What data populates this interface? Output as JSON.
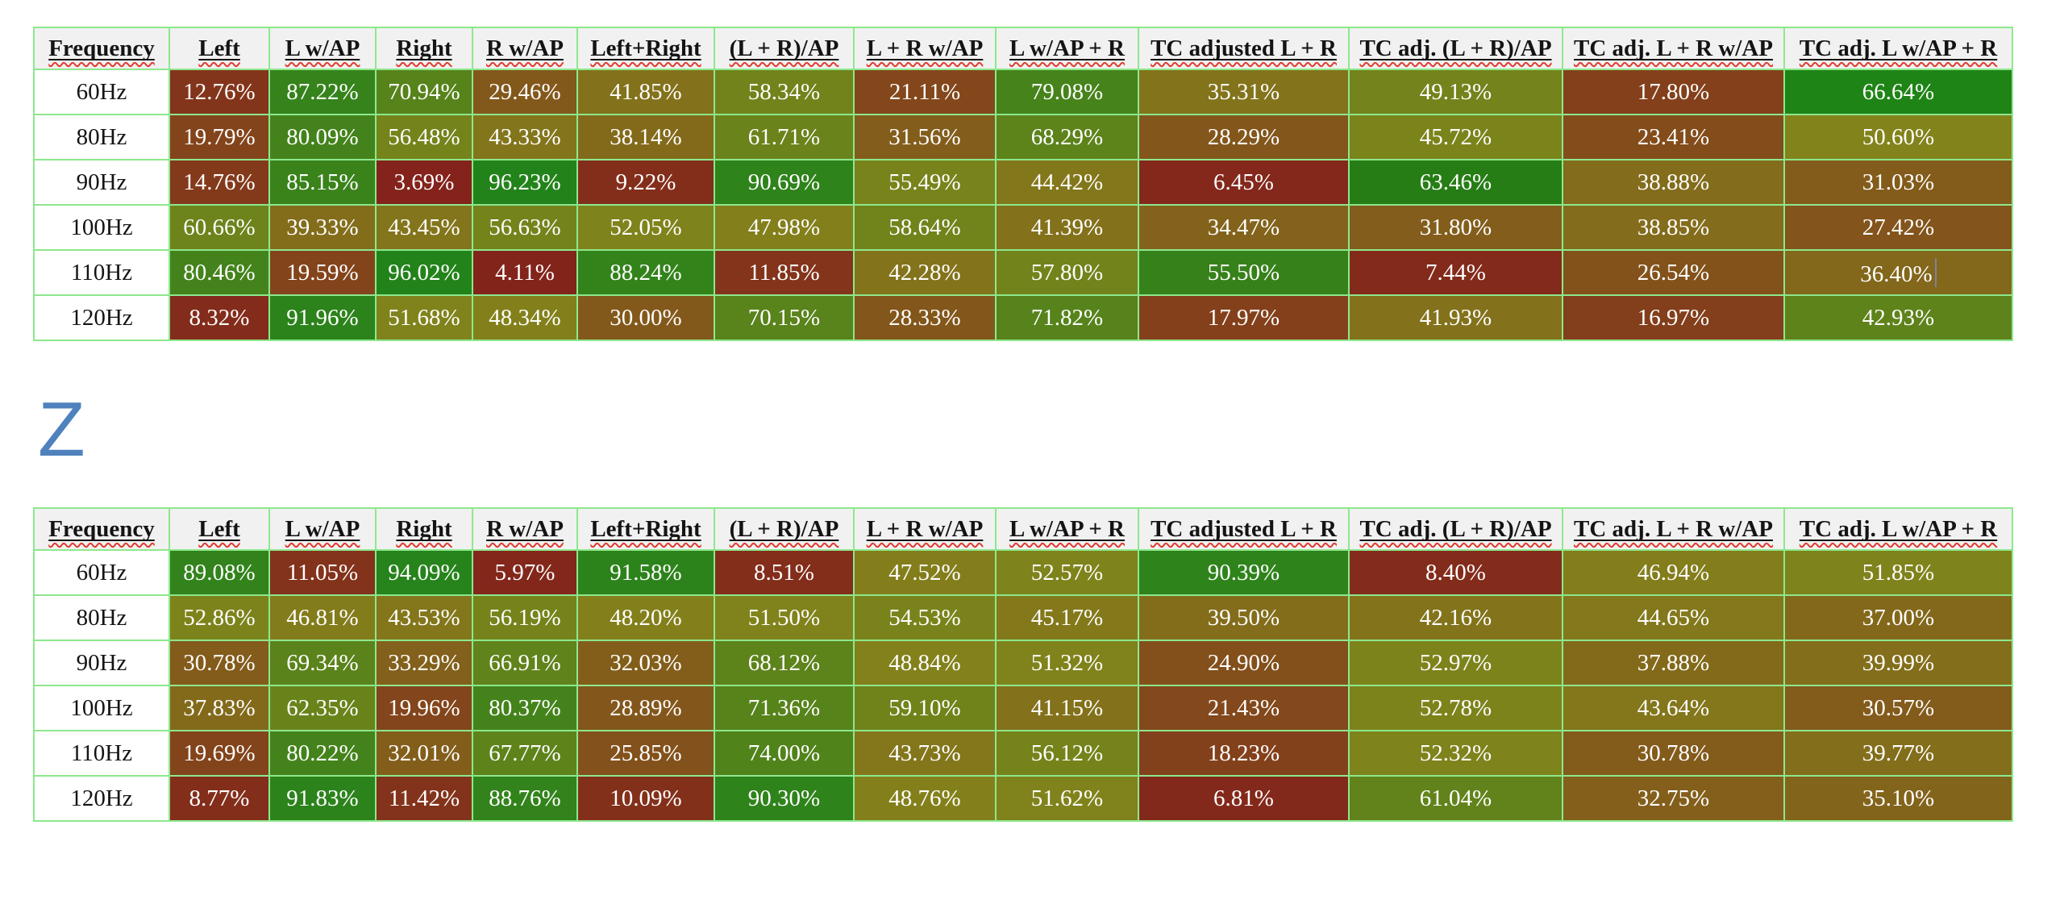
{
  "page": {
    "background": "#ffffff"
  },
  "theme": {
    "table_border": "#8de88d",
    "header_bg": "#f1f1f1",
    "header_text": "#141414",
    "cell_text": "#ffffff",
    "spellcheck_underline": "#e03c31",
    "caret_color": "#80809c",
    "heading_color": "#4f81bd"
  },
  "heading": {
    "text": "Z"
  },
  "headers": [
    "Frequency",
    "Left",
    "L w/AP",
    "Right",
    "R w/AP",
    "Left+Right",
    "(L + R)/AP",
    "L + R w/AP",
    "L w/AP + R",
    "TC adjusted L + R",
    "TC adj. (L + R)/AP",
    "TC adj. L + R w/AP",
    "TC adj. L w/AP + R"
  ],
  "tables": [
    {
      "name": "upper",
      "caret": {
        "row": 4,
        "col": 11
      },
      "rows": [
        {
          "frequency": "60Hz",
          "values": [
            "12.76%",
            "87.22%",
            "70.94%",
            "29.46%",
            "41.85%",
            "58.34%",
            "21.11%",
            "79.08%",
            "35.31%",
            "49.13%",
            "17.80%",
            "66.64%"
          ],
          "colors": [
            "#83351b",
            "#36831b",
            "#57831b",
            "#83581b",
            "#83721b",
            "#72831b",
            "#83471b",
            "#46831b",
            "#83731b",
            "#74831b",
            "#83401b",
            "#1f8416"
          ]
        },
        {
          "frequency": "80Hz",
          "values": [
            "19.79%",
            "80.09%",
            "56.48%",
            "43.33%",
            "38.14%",
            "61.71%",
            "31.56%",
            "68.29%",
            "28.29%",
            "45.72%",
            "23.41%",
            "50.60%"
          ],
          "colors": [
            "#83441b",
            "#44831b",
            "#75831b",
            "#83751b",
            "#836a1b",
            "#6b831b",
            "#835d1b",
            "#5d831b",
            "#83561b",
            "#7b831b",
            "#834c1b",
            "#82831b"
          ]
        },
        {
          "frequency": "90Hz",
          "values": [
            "14.76%",
            "85.15%",
            "3.69%",
            "96.23%",
            "9.22%",
            "90.69%",
            "55.49%",
            "44.42%",
            "6.45%",
            "63.46%",
            "38.88%",
            "31.03%"
          ],
          "colors": [
            "#833a1b",
            "#3a831b",
            "#83231b",
            "#23831b",
            "#832e1b",
            "#2e831b",
            "#78831b",
            "#83771b",
            "#83281b",
            "#267d15",
            "#836c1b",
            "#835c1b"
          ]
        },
        {
          "frequency": "100Hz",
          "values": [
            "60.66%",
            "39.33%",
            "43.45%",
            "56.63%",
            "52.05%",
            "47.98%",
            "58.64%",
            "41.39%",
            "34.47%",
            "31.80%",
            "38.85%",
            "27.42%"
          ],
          "colors": [
            "#6d831b",
            "#836d1b",
            "#83751b",
            "#75831b",
            "#7f831b",
            "#837f1b",
            "#71831b",
            "#83711b",
            "#83631b",
            "#835d1b",
            "#836c1b",
            "#83541b"
          ]
        },
        {
          "frequency": "110Hz",
          "values": [
            "80.46%",
            "19.59%",
            "96.02%",
            "4.11%",
            "88.24%",
            "11.85%",
            "42.28%",
            "57.80%",
            "55.50%",
            "7.44%",
            "26.54%",
            "36.40%"
          ],
          "colors": [
            "#44831b",
            "#83441b",
            "#23831b",
            "#83241b",
            "#33831b",
            "#83341b",
            "#83731b",
            "#73831b",
            "#37811a",
            "#832a1b",
            "#83521b",
            "#83671b"
          ]
        },
        {
          "frequency": "120Hz",
          "values": [
            "8.32%",
            "91.96%",
            "51.68%",
            "48.34%",
            "30.00%",
            "70.15%",
            "28.33%",
            "71.82%",
            "17.97%",
            "41.93%",
            "16.97%",
            "42.93%"
          ],
          "colors": [
            "#832c1b",
            "#2c831b",
            "#80831b",
            "#83801b",
            "#83591b",
            "#59831b",
            "#83561b",
            "#56831b",
            "#83401b",
            "#83721b",
            "#833e1b",
            "#5f831b"
          ]
        }
      ]
    },
    {
      "name": "lower",
      "caret": null,
      "rows": [
        {
          "frequency": "60Hz",
          "values": [
            "89.08%",
            "11.05%",
            "94.09%",
            "5.97%",
            "91.58%",
            "8.51%",
            "47.52%",
            "52.57%",
            "90.39%",
            "8.40%",
            "46.94%",
            "51.85%"
          ],
          "colors": [
            "#32831b",
            "#83321b",
            "#27831b",
            "#83271b",
            "#2d831b",
            "#832d1b",
            "#837e1b",
            "#7e831b",
            "#2f831b",
            "#832c1b",
            "#837d1b",
            "#7f831b"
          ]
        },
        {
          "frequency": "80Hz",
          "values": [
            "52.86%",
            "46.81%",
            "43.53%",
            "56.19%",
            "48.20%",
            "51.50%",
            "54.53%",
            "45.17%",
            "39.50%",
            "42.16%",
            "44.65%",
            "37.00%"
          ],
          "colors": [
            "#7d831b",
            "#837c1b",
            "#83761b",
            "#76831b",
            "#837f1b",
            "#80831b",
            "#7a831b",
            "#83791b",
            "#836d1b",
            "#83731b",
            "#83781b",
            "#83681b"
          ]
        },
        {
          "frequency": "90Hz",
          "values": [
            "30.78%",
            "69.34%",
            "33.29%",
            "66.91%",
            "32.03%",
            "68.12%",
            "48.84%",
            "51.32%",
            "24.90%",
            "52.97%",
            "37.88%",
            "39.99%"
          ],
          "colors": [
            "#835b1b",
            "#5b831b",
            "#83601b",
            "#60831b",
            "#835e1b",
            "#5d831b",
            "#83811b",
            "#80831b",
            "#834f1b",
            "#7d831b",
            "#836a1b",
            "#836e1b"
          ]
        },
        {
          "frequency": "100Hz",
          "values": [
            "37.83%",
            "62.35%",
            "19.96%",
            "80.37%",
            "28.89%",
            "71.36%",
            "59.10%",
            "41.15%",
            "21.43%",
            "52.78%",
            "43.64%",
            "30.57%"
          ],
          "colors": [
            "#836a1b",
            "#69831b",
            "#83451b",
            "#44831b",
            "#83571b",
            "#57831b",
            "#70831b",
            "#83711b",
            "#83481b",
            "#7d831b",
            "#83761b",
            "#835b1b"
          ]
        },
        {
          "frequency": "110Hz",
          "values": [
            "19.69%",
            "80.22%",
            "32.01%",
            "67.77%",
            "25.85%",
            "74.00%",
            "43.73%",
            "56.12%",
            "18.23%",
            "52.32%",
            "30.78%",
            "39.77%"
          ],
          "colors": [
            "#83441b",
            "#44831b",
            "#835e1b",
            "#5e831b",
            "#83511b",
            "#51831b",
            "#83761b",
            "#76831b",
            "#83411b",
            "#7e831b",
            "#835b1b",
            "#836e1b"
          ]
        },
        {
          "frequency": "120Hz",
          "values": [
            "8.77%",
            "91.83%",
            "11.42%",
            "88.76%",
            "10.09%",
            "90.30%",
            "48.76%",
            "51.62%",
            "6.81%",
            "61.04%",
            "32.75%",
            "35.10%"
          ],
          "colors": [
            "#832d1b",
            "#2c831b",
            "#83331b",
            "#32831b",
            "#83301b",
            "#2f831b",
            "#83801b",
            "#80831b",
            "#83291b",
            "#62831b",
            "#835f1b",
            "#83641b"
          ]
        }
      ]
    }
  ]
}
